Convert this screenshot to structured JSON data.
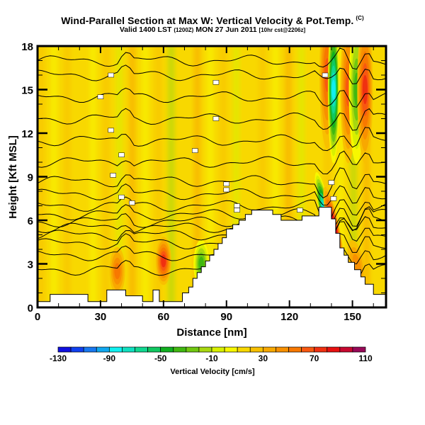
{
  "title": {
    "main": "Wind-Parallel Section at Max W: Vertical Velocity & Pot.Temp.",
    "copyright_mark": "(C)",
    "valid_prefix": "Valid 1400 LST",
    "valid_utc": "(1200Z)",
    "valid_date": "MON 27 Jun 2011",
    "run_info": "[10hr cst@2206z]"
  },
  "chart_data": {
    "type": "heatmap",
    "title": "Wind-Parallel Section at Max W: Vertical Velocity & Pot.Temp.",
    "xlabel": "Distance [nm]",
    "ylabel": "Height [Kft MSL]",
    "xlim": [
      0,
      166
    ],
    "ylim": [
      0,
      18
    ],
    "xticks": [
      0,
      30,
      60,
      90,
      120,
      150
    ],
    "yticks": [
      0,
      3,
      6,
      9,
      12,
      15,
      18
    ],
    "colorbar": {
      "label": "Vertical Velocity [cm/s]",
      "min": -130,
      "max": 110,
      "step": 10,
      "tick_labels": [
        "-130",
        "-90",
        "-50",
        "-10",
        "30",
        "70",
        "110"
      ],
      "colors": [
        "#1010e0",
        "#1040f0",
        "#1878f0",
        "#10a8f0",
        "#10f0f0",
        "#10e0c0",
        "#10d890",
        "#10c860",
        "#10b020",
        "#40b810",
        "#70c810",
        "#a8d810",
        "#d8f000",
        "#f8f800",
        "#f8d800",
        "#f8c000",
        "#f8a800",
        "#f89000",
        "#f87800",
        "#f85810",
        "#f03010",
        "#e81010",
        "#c80830",
        "#980858"
      ]
    },
    "background_value": 10,
    "velocity_features": [
      {
        "x_nm": 38,
        "z_kft": 2.5,
        "value": 50
      },
      {
        "x_nm": 60,
        "z_kft": 3.2,
        "value": 70
      },
      {
        "x_nm": 78,
        "z_kft": 3.0,
        "value": -40
      },
      {
        "x_nm": 137,
        "z_kft": 6.5,
        "value": -100
      },
      {
        "x_nm": 141,
        "z_kft": 5.5,
        "value": 100
      },
      {
        "x_nm": 138,
        "z_kft": 16,
        "value": 60
      },
      {
        "x_nm": 141,
        "z_kft": 15,
        "value": -90
      },
      {
        "x_nm": 148,
        "z_kft": 15,
        "value": 60
      },
      {
        "x_nm": 152,
        "z_kft": 15,
        "value": -40
      },
      {
        "x_nm": 156,
        "z_kft": 15,
        "value": 70
      },
      {
        "x_nm": 152,
        "z_kft": 3,
        "value": 40
      }
    ],
    "terrain_kft": [
      [
        0,
        0.4
      ],
      [
        6,
        0.4
      ],
      [
        6,
        0.9
      ],
      [
        24,
        0.9
      ],
      [
        24,
        0.4
      ],
      [
        30,
        0.4
      ],
      [
        30,
        0.4
      ],
      [
        33,
        0.4
      ],
      [
        33,
        1.2
      ],
      [
        42,
        1.2
      ],
      [
        42,
        0.8
      ],
      [
        50,
        0.8
      ],
      [
        50,
        0.4
      ],
      [
        55,
        0.4
      ],
      [
        55,
        1.2
      ],
      [
        58,
        1.2
      ],
      [
        58,
        0.4
      ],
      [
        63,
        0.4
      ],
      [
        63,
        0.4
      ],
      [
        69,
        0.4
      ],
      [
        69,
        1.0
      ],
      [
        72,
        1.0
      ],
      [
        72,
        1.4
      ],
      [
        74,
        1.4
      ],
      [
        74,
        2.0
      ],
      [
        76,
        2.0
      ],
      [
        76,
        2.4
      ],
      [
        78,
        2.4
      ],
      [
        78,
        2.8
      ],
      [
        80,
        2.8
      ],
      [
        80,
        3.2
      ],
      [
        82,
        3.2
      ],
      [
        82,
        3.6
      ],
      [
        84,
        3.6
      ],
      [
        84,
        4.0
      ],
      [
        86,
        4.0
      ],
      [
        86,
        4.4
      ],
      [
        88,
        4.4
      ],
      [
        88,
        4.8
      ],
      [
        90,
        4.8
      ],
      [
        90,
        5.4
      ],
      [
        93,
        5.4
      ],
      [
        93,
        5.7
      ],
      [
        96,
        5.7
      ],
      [
        96,
        6.0
      ],
      [
        99,
        6.0
      ],
      [
        99,
        6.4
      ],
      [
        102,
        6.4
      ],
      [
        102,
        6.7
      ],
      [
        112,
        6.7
      ],
      [
        112,
        6.4
      ],
      [
        116,
        6.4
      ],
      [
        116,
        6.0
      ],
      [
        126,
        6.0
      ],
      [
        126,
        6.3
      ],
      [
        134,
        6.3
      ],
      [
        134,
        6.9
      ],
      [
        140,
        6.9
      ],
      [
        140,
        6.1
      ],
      [
        142,
        6.1
      ],
      [
        142,
        5.1
      ],
      [
        144,
        5.1
      ],
      [
        144,
        4.1
      ],
      [
        146,
        4.1
      ],
      [
        146,
        3.6
      ],
      [
        148,
        3.6
      ],
      [
        148,
        3.1
      ],
      [
        151,
        3.1
      ],
      [
        151,
        2.6
      ],
      [
        154,
        2.6
      ],
      [
        154,
        2.1
      ],
      [
        156,
        2.1
      ],
      [
        156,
        1.6
      ],
      [
        160,
        1.6
      ],
      [
        160,
        0.9
      ],
      [
        166,
        0.9
      ]
    ],
    "isentropes": {
      "count": 16,
      "upper_levels_kft": [
        17.0,
        16.0,
        14.5,
        13.0,
        11.5,
        10.0,
        8.7,
        7.8,
        7.0,
        6.4,
        5.9,
        5.5,
        5.0,
        4.4,
        3.6,
        2.6
      ]
    }
  }
}
